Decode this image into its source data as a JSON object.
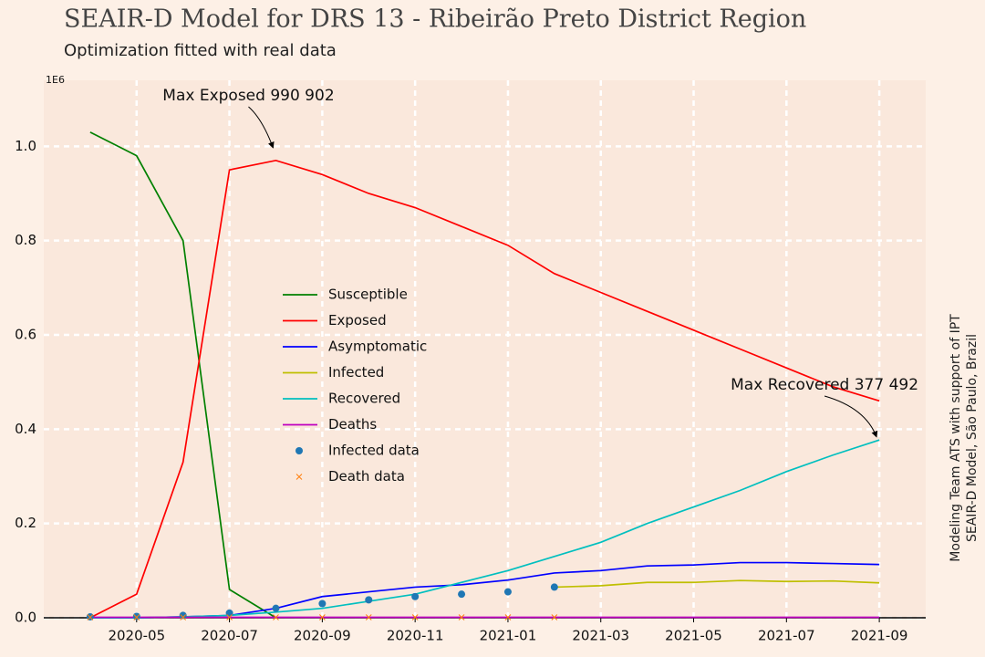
{
  "chart_data": {
    "type": "line",
    "title": "SEAIR-D Model for DRS 13 - Ribeirão Preto District Region",
    "subtitle": "Optimization fitted with real data",
    "y_scale_label": "1E6",
    "side_notes": [
      "Modeling Team ATS with support of IPT",
      "SEAIR-D Model, São Paulo, Brazil"
    ],
    "x": [
      "2020-04",
      "2020-05",
      "2020-06",
      "2020-07",
      "2020-08",
      "2020-09",
      "2020-10",
      "2020-11",
      "2020-12",
      "2021-01",
      "2021-02",
      "2021-03",
      "2021-04",
      "2021-05",
      "2021-06",
      "2021-07",
      "2021-08",
      "2021-09"
    ],
    "series": [
      {
        "name": "Susceptible",
        "color": "#008000",
        "values": [
          1.03,
          0.98,
          0.8,
          0.06,
          0.0,
          null,
          null,
          null,
          null,
          null,
          null,
          null,
          null,
          null,
          null,
          null,
          null,
          null
        ]
      },
      {
        "name": "Exposed",
        "color": "#ff0000",
        "values": [
          0.0,
          0.05,
          0.33,
          0.95,
          0.97,
          0.94,
          0.9,
          0.87,
          0.83,
          0.79,
          0.73,
          0.69,
          0.65,
          0.61,
          0.57,
          0.53,
          0.49,
          0.46
        ]
      },
      {
        "name": "Asymptomatic",
        "color": "#0000ff",
        "values": [
          0.0,
          0.0,
          0.002,
          0.005,
          0.02,
          0.045,
          0.055,
          0.065,
          0.07,
          0.08,
          0.095,
          0.1,
          0.11,
          0.112,
          0.117,
          0.117,
          0.115,
          0.113
        ]
      },
      {
        "name": "Infected",
        "color": "#bfbf00",
        "values": [
          null,
          null,
          null,
          null,
          null,
          null,
          null,
          null,
          null,
          null,
          0.065,
          0.068,
          0.075,
          0.075,
          0.079,
          0.077,
          0.078,
          0.074
        ]
      },
      {
        "name": "Recovered",
        "color": "#00bfbf",
        "values": [
          0.0,
          0.0,
          0.002,
          0.005,
          0.012,
          0.02,
          0.035,
          0.05,
          0.075,
          0.1,
          0.13,
          0.16,
          0.2,
          0.235,
          0.27,
          0.31,
          0.345,
          0.377
        ]
      },
      {
        "name": "Deaths",
        "color": "#bf00bf",
        "values": [
          0.001,
          0.001,
          0.001,
          0.001,
          0.001,
          0.001,
          0.001,
          0.001,
          0.001,
          0.001,
          0.001,
          0.001,
          0.001,
          0.001,
          0.001,
          0.001,
          0.001,
          0.001
        ]
      },
      {
        "name": "Infected data",
        "color": "#1f77b4",
        "marker": "o",
        "values": [
          0.002,
          0.003,
          0.005,
          0.01,
          0.02,
          0.03,
          0.038,
          0.045,
          0.05,
          0.055,
          0.065,
          null,
          null,
          null,
          null,
          null,
          null,
          null
        ]
      },
      {
        "name": "Death data",
        "color": "#ff7f0e",
        "marker": "x",
        "values": [
          0.001,
          0.001,
          0.001,
          0.001,
          0.001,
          0.001,
          0.001,
          0.001,
          0.001,
          0.001,
          0.001,
          null,
          null,
          null,
          null,
          null,
          null,
          null
        ]
      }
    ],
    "annotations": [
      {
        "text": "Max Exposed 990 902",
        "x": "2020-08",
        "y": 0.990902
      },
      {
        "text": "Max Recovered 377 492",
        "x": "2021-09",
        "y": 0.377492
      }
    ],
    "xlim": [
      "2020-03",
      "2021-10"
    ],
    "xticks": [
      "2020-05",
      "2020-07",
      "2020-09",
      "2020-11",
      "2021-01",
      "2021-03",
      "2021-05",
      "2021-07",
      "2021-09"
    ],
    "ylim": [
      0,
      1.14
    ],
    "yticks": [
      {
        "value": 0,
        "label": "0.0"
      },
      {
        "value": 0.2,
        "label": "0.2"
      },
      {
        "value": 0.4,
        "label": "0.4"
      },
      {
        "value": 0.6,
        "label": "0.6"
      },
      {
        "value": 0.8,
        "label": "0.8"
      },
      {
        "value": 1.0,
        "label": "1.0"
      }
    ],
    "grid": true,
    "legend": "center left"
  }
}
